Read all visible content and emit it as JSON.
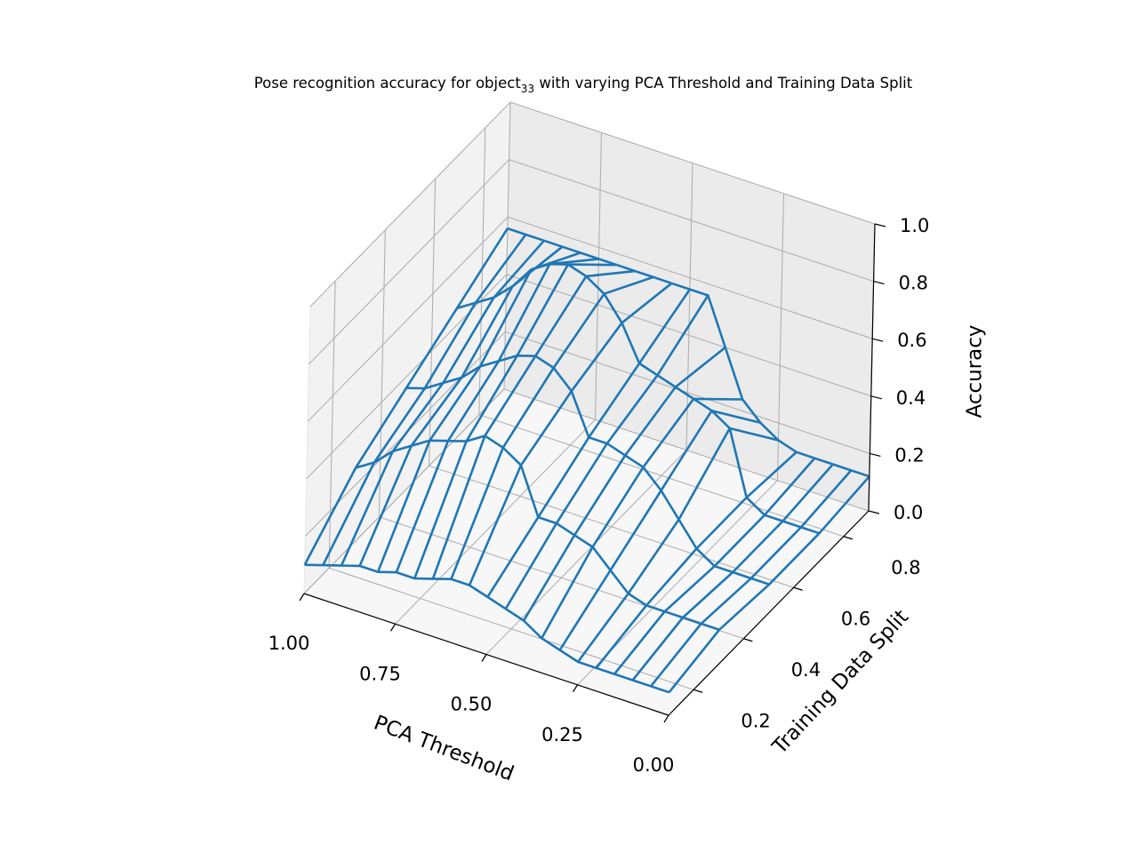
{
  "chart_data": {
    "type": "wireframe",
    "title_main": "Pose recognition accuracy for object",
    "title_subscript": "33",
    "title_rest": " with varying PCA Threshold and Training Data Split",
    "xlabel": "PCA Threshold",
    "ylabel": "Training Data Split",
    "zlabel": "Accuracy",
    "xlim": [
      1.0,
      0.0
    ],
    "ylim": [
      0.1,
      0.9
    ],
    "zlim": [
      0.0,
      1.0
    ],
    "x_ticks": [
      "1.00",
      "0.75",
      "0.50",
      "0.25",
      "0.00"
    ],
    "y_ticks": [
      "0.2",
      "0.4",
      "0.6",
      "0.8"
    ],
    "z_ticks": [
      "0.0",
      "0.2",
      "0.4",
      "0.6",
      "0.8",
      "1.0"
    ],
    "grid": true,
    "colors": {
      "wire": "#1f77b4",
      "pane_back": "#ebebeb",
      "pane_side": "#f2f2f2",
      "pane_floor": "#f7f7f7",
      "grid": "#b0b0b0"
    },
    "grid_x": [
      0.0,
      0.05,
      0.1,
      0.15,
      0.2,
      0.25,
      0.3,
      0.35,
      0.4,
      0.45,
      0.5,
      0.55,
      0.6,
      0.65,
      0.7,
      0.75,
      0.8,
      0.85,
      0.9,
      0.95,
      1.0
    ],
    "grid_y": [
      0.1,
      0.3,
      0.5,
      0.7,
      0.9
    ],
    "accuracy": [
      [
        0.08,
        0.08,
        0.08,
        0.08,
        0.08,
        0.08,
        0.1,
        0.12,
        0.16,
        0.18,
        0.2,
        0.22,
        0.22,
        0.2,
        0.18,
        0.18,
        0.16,
        0.16,
        0.14,
        0.12,
        0.1
      ],
      [
        0.12,
        0.12,
        0.12,
        0.12,
        0.12,
        0.14,
        0.2,
        0.26,
        0.28,
        0.3,
        0.3,
        0.46,
        0.5,
        0.52,
        0.48,
        0.46,
        0.44,
        0.4,
        0.36,
        0.3,
        0.26
      ],
      [
        0.1,
        0.1,
        0.1,
        0.1,
        0.14,
        0.22,
        0.3,
        0.36,
        0.38,
        0.4,
        0.4,
        0.54,
        0.6,
        0.62,
        0.6,
        0.56,
        0.52,
        0.46,
        0.42,
        0.38,
        0.36
      ],
      [
        0.1,
        0.1,
        0.1,
        0.1,
        0.14,
        0.36,
        0.4,
        0.42,
        0.44,
        0.46,
        0.48,
        0.6,
        0.68,
        0.72,
        0.74,
        0.72,
        0.68,
        0.6,
        0.54,
        0.5,
        0.46
      ],
      [
        0.12,
        0.12,
        0.12,
        0.12,
        0.12,
        0.14,
        0.18,
        0.24,
        0.4,
        0.56,
        0.56,
        0.56,
        0.56,
        0.56,
        0.56,
        0.56,
        0.56,
        0.56,
        0.56,
        0.56,
        0.56
      ]
    ]
  }
}
